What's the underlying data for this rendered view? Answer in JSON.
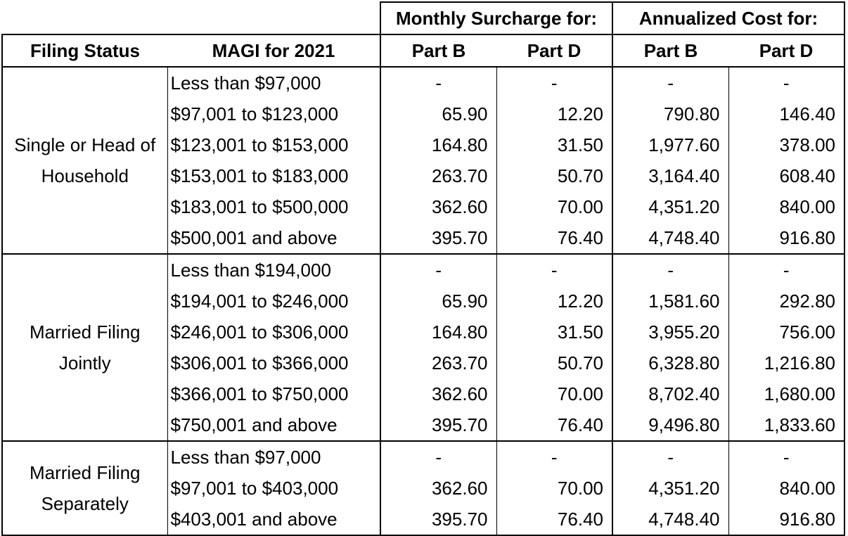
{
  "header": {
    "monthly_group": "Monthly Surcharge for:",
    "annual_group": "Annualized Cost for:",
    "filing_status": "Filing Status",
    "magi": "MAGI for 2021",
    "monthly_part_b": "Part B",
    "monthly_part_d": "Part D",
    "annual_part_b": "Part B",
    "annual_part_d": "Part D"
  },
  "groups": [
    {
      "status": "Single or Head of Household",
      "rows": [
        {
          "magi": "Less than $97,000",
          "mb": "-",
          "md": "-",
          "ab": "-",
          "ad": "-"
        },
        {
          "magi": "$97,001 to $123,000",
          "mb": "65.90",
          "md": "12.20",
          "ab": "790.80",
          "ad": "146.40"
        },
        {
          "magi": "$123,001 to $153,000",
          "mb": "164.80",
          "md": "31.50",
          "ab": "1,977.60",
          "ad": "378.00"
        },
        {
          "magi": "$153,001 to $183,000",
          "mb": "263.70",
          "md": "50.70",
          "ab": "3,164.40",
          "ad": "608.40"
        },
        {
          "magi": "$183,001 to $500,000",
          "mb": "362.60",
          "md": "70.00",
          "ab": "4,351.20",
          "ad": "840.00"
        },
        {
          "magi": "$500,001 and above",
          "mb": "395.70",
          "md": "76.40",
          "ab": "4,748.40",
          "ad": "916.80"
        }
      ]
    },
    {
      "status": "Married Filing Jointly",
      "rows": [
        {
          "magi": "Less than $194,000",
          "mb": "-",
          "md": "-",
          "ab": "-",
          "ad": "-"
        },
        {
          "magi": "$194,001 to $246,000",
          "mb": "65.90",
          "md": "12.20",
          "ab": "1,581.60",
          "ad": "292.80"
        },
        {
          "magi": "$246,001 to $306,000",
          "mb": "164.80",
          "md": "31.50",
          "ab": "3,955.20",
          "ad": "756.00"
        },
        {
          "magi": "$306,001 to $366,000",
          "mb": "263.70",
          "md": "50.70",
          "ab": "6,328.80",
          "ad": "1,216.80"
        },
        {
          "magi": "$366,001 to $750,000",
          "mb": "362.60",
          "md": "70.00",
          "ab": "8,702.40",
          "ad": "1,680.00"
        },
        {
          "magi": "$750,001 and above",
          "mb": "395.70",
          "md": "76.40",
          "ab": "9,496.80",
          "ad": "1,833.60"
        }
      ]
    },
    {
      "status": "Married Filing Separately",
      "rows": [
        {
          "magi": "Less than $97,000",
          "mb": "-",
          "md": "-",
          "ab": "-",
          "ad": "-"
        },
        {
          "magi": "$97,001 to $403,000",
          "mb": "362.60",
          "md": "70.00",
          "ab": "4,351.20",
          "ad": "840.00"
        },
        {
          "magi": "$403,001 and above",
          "mb": "395.70",
          "md": "76.40",
          "ab": "4,748.40",
          "ad": "916.80"
        }
      ]
    }
  ]
}
